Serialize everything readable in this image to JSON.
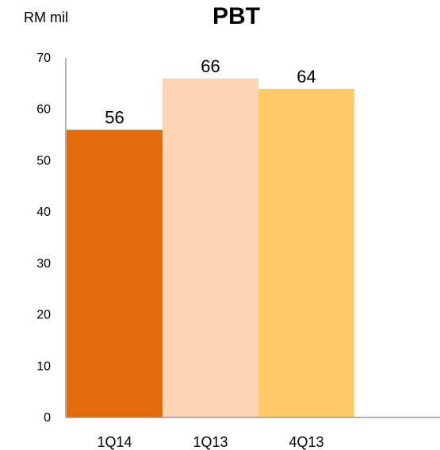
{
  "chart_data": {
    "type": "bar",
    "title": "PBT",
    "unit_label": "RM mil",
    "categories": [
      "1Q14",
      "1Q13",
      "4Q13"
    ],
    "values": [
      56,
      66,
      64
    ],
    "data_labels": [
      "56",
      "66",
      "64"
    ],
    "bar_colors": [
      "#e36c0a",
      "#fbd5b5",
      "#fdca66"
    ],
    "ylim": [
      0,
      70
    ],
    "yticks": [
      0,
      10,
      20,
      30,
      40,
      50,
      60,
      70
    ],
    "grid": false,
    "legend": "none"
  }
}
